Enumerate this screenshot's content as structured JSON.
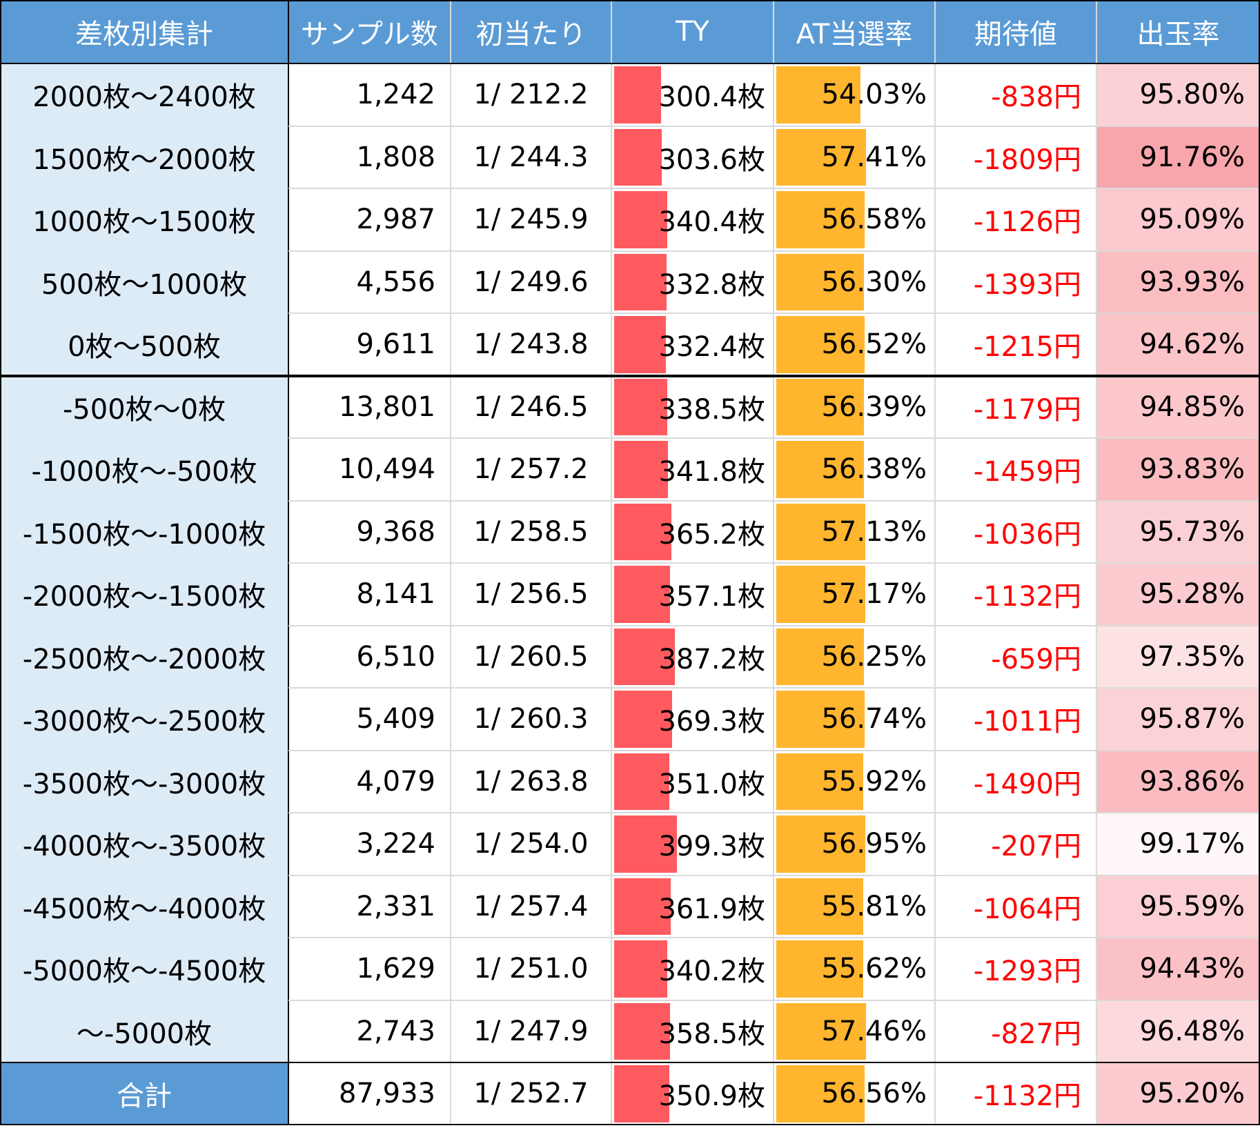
{
  "chart_data": {
    "type": "table",
    "columns": [
      "差枚別集計",
      "サンプル数",
      "初当たり",
      "TY",
      "AT当選率",
      "期待値",
      "出玉率"
    ],
    "rows": [
      {
        "range": "2000枚～2400枚",
        "samples": "1,242",
        "first_hit": "1/ 212.2",
        "ty": "300.4枚",
        "ty_value": 300.4,
        "at_rate": "54.03%",
        "at_value": 54.03,
        "ev": "-838円",
        "payout": "95.80%",
        "payout_value": 95.8
      },
      {
        "range": "1500枚～2000枚",
        "samples": "1,808",
        "first_hit": "1/ 244.3",
        "ty": "303.6枚",
        "ty_value": 303.6,
        "at_rate": "57.41%",
        "at_value": 57.41,
        "ev": "-1809円",
        "payout": "91.76%",
        "payout_value": 91.76
      },
      {
        "range": "1000枚～1500枚",
        "samples": "2,987",
        "first_hit": "1/ 245.9",
        "ty": "340.4枚",
        "ty_value": 340.4,
        "at_rate": "56.58%",
        "at_value": 56.58,
        "ev": "-1126円",
        "payout": "95.09%",
        "payout_value": 95.09
      },
      {
        "range": "500枚～1000枚",
        "samples": "4,556",
        "first_hit": "1/ 249.6",
        "ty": "332.8枚",
        "ty_value": 332.8,
        "at_rate": "56.30%",
        "at_value": 56.3,
        "ev": "-1393円",
        "payout": "93.93%",
        "payout_value": 93.93
      },
      {
        "range": "0枚～500枚",
        "samples": "9,611",
        "first_hit": "1/ 243.8",
        "ty": "332.4枚",
        "ty_value": 332.4,
        "at_rate": "56.52%",
        "at_value": 56.52,
        "ev": "-1215円",
        "payout": "94.62%",
        "payout_value": 94.62
      },
      {
        "range": "-500枚～0枚",
        "samples": "13,801",
        "first_hit": "1/ 246.5",
        "ty": "338.5枚",
        "ty_value": 338.5,
        "at_rate": "56.39%",
        "at_value": 56.39,
        "ev": "-1179円",
        "payout": "94.85%",
        "payout_value": 94.85
      },
      {
        "range": "-1000枚～-500枚",
        "samples": "10,494",
        "first_hit": "1/ 257.2",
        "ty": "341.8枚",
        "ty_value": 341.8,
        "at_rate": "56.38%",
        "at_value": 56.38,
        "ev": "-1459円",
        "payout": "93.83%",
        "payout_value": 93.83
      },
      {
        "range": "-1500枚～-1000枚",
        "samples": "9,368",
        "first_hit": "1/ 258.5",
        "ty": "365.2枚",
        "ty_value": 365.2,
        "at_rate": "57.13%",
        "at_value": 57.13,
        "ev": "-1036円",
        "payout": "95.73%",
        "payout_value": 95.73
      },
      {
        "range": "-2000枚～-1500枚",
        "samples": "8,141",
        "first_hit": "1/ 256.5",
        "ty": "357.1枚",
        "ty_value": 357.1,
        "at_rate": "57.17%",
        "at_value": 57.17,
        "ev": "-1132円",
        "payout": "95.28%",
        "payout_value": 95.28
      },
      {
        "range": "-2500枚～-2000枚",
        "samples": "6,510",
        "first_hit": "1/ 260.5",
        "ty": "387.2枚",
        "ty_value": 387.2,
        "at_rate": "56.25%",
        "at_value": 56.25,
        "ev": "-659円",
        "payout": "97.35%",
        "payout_value": 97.35
      },
      {
        "range": "-3000枚～-2500枚",
        "samples": "5,409",
        "first_hit": "1/ 260.3",
        "ty": "369.3枚",
        "ty_value": 369.3,
        "at_rate": "56.74%",
        "at_value": 56.74,
        "ev": "-1011円",
        "payout": "95.87%",
        "payout_value": 95.87
      },
      {
        "range": "-3500枚～-3000枚",
        "samples": "4,079",
        "first_hit": "1/ 263.8",
        "ty": "351.0枚",
        "ty_value": 351.0,
        "at_rate": "55.92%",
        "at_value": 55.92,
        "ev": "-1490円",
        "payout": "93.86%",
        "payout_value": 93.86
      },
      {
        "range": "-4000枚～-3500枚",
        "samples": "3,224",
        "first_hit": "1/ 254.0",
        "ty": "399.3枚",
        "ty_value": 399.3,
        "at_rate": "56.95%",
        "at_value": 56.95,
        "ev": "-207円",
        "payout": "99.17%",
        "payout_value": 99.17
      },
      {
        "range": "-4500枚～-4000枚",
        "samples": "2,331",
        "first_hit": "1/ 257.4",
        "ty": "361.9枚",
        "ty_value": 361.9,
        "at_rate": "55.81%",
        "at_value": 55.81,
        "ev": "-1064円",
        "payout": "95.59%",
        "payout_value": 95.59
      },
      {
        "range": "-5000枚～-4500枚",
        "samples": "1,629",
        "first_hit": "1/ 251.0",
        "ty": "340.2枚",
        "ty_value": 340.2,
        "at_rate": "55.62%",
        "at_value": 55.62,
        "ev": "-1293円",
        "payout": "94.43%",
        "payout_value": 94.43
      },
      {
        "range": "～-5000枚",
        "samples": "2,743",
        "first_hit": "1/ 247.9",
        "ty": "358.5枚",
        "ty_value": 358.5,
        "at_rate": "57.46%",
        "at_value": 57.46,
        "ev": "-827円",
        "payout": "96.48%",
        "payout_value": 96.48
      }
    ],
    "total": {
      "range": "合計",
      "samples": "87,933",
      "first_hit": "1/ 252.7",
      "ty": "350.9枚",
      "ty_value": 350.9,
      "at_rate": "56.56%",
      "at_value": 56.56,
      "ev": "-1132円",
      "payout": "95.20%",
      "payout_value": 95.2
    },
    "ty_bar_scale_max": 1000,
    "at_bar_scale_max": 100,
    "payout_heat_range": [
      91.76,
      100
    ],
    "group_separator_after_row": 4
  },
  "colors": {
    "header_bg": "#5b9bd5",
    "header_text": "#ffffff",
    "label_bg": "#ddebf7",
    "ty_bar": "#ff5a5f",
    "at_bar": "#ffb52e",
    "ev_text": "#ff0000",
    "payout_heat_max": "#f8a5ac",
    "payout_heat_min": "#ffffff",
    "grid": "#d9d9d9",
    "dark_line": "#000000"
  }
}
